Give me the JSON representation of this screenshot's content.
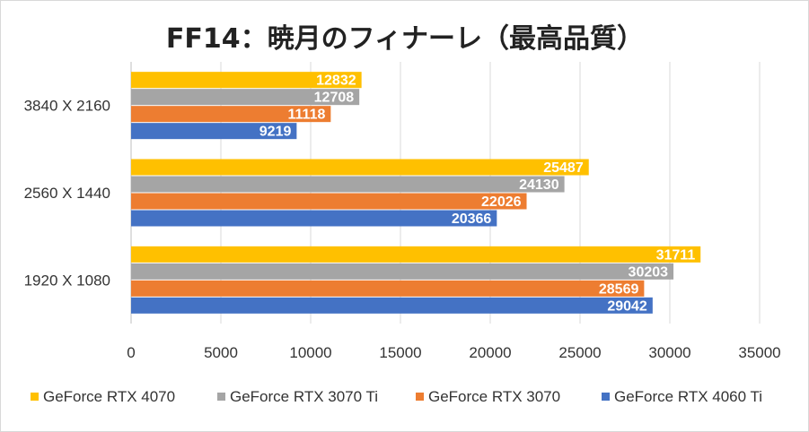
{
  "chart_data": {
    "type": "bar",
    "orientation": "horizontal",
    "title": "FF14：暁月のフィナーレ（最高品質）",
    "xlabel": "",
    "ylabel": "",
    "categories": [
      "3840 X 2160",
      "2560 X 1440",
      "1920 X 1080"
    ],
    "xlim": [
      0,
      35000
    ],
    "xticks": [
      0,
      5000,
      10000,
      15000,
      20000,
      25000,
      30000,
      35000
    ],
    "grid": true,
    "legend_position": "bottom",
    "series": [
      {
        "name": "GeForce RTX 4070",
        "color": "#FFC000",
        "values": [
          12832,
          25487,
          31711
        ]
      },
      {
        "name": "GeForce RTX 3070 Ti",
        "color": "#A5A5A5",
        "values": [
          12708,
          24130,
          30203
        ]
      },
      {
        "name": "GeForce RTX 3070",
        "color": "#ED7D31",
        "values": [
          11118,
          22026,
          28569
        ]
      },
      {
        "name": "GeForce RTX 4060 Ti",
        "color": "#4472C4",
        "values": [
          9219,
          20366,
          29042
        ]
      }
    ]
  }
}
